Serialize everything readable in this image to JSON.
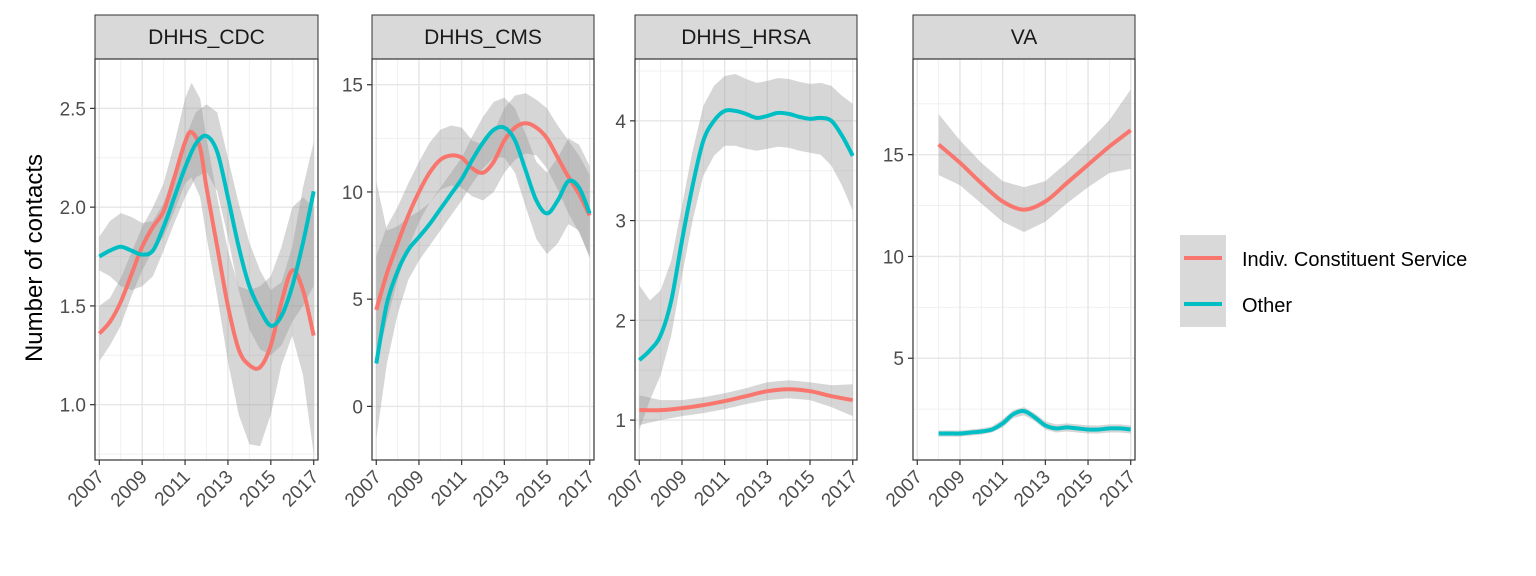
{
  "chart_data": {
    "type": "line",
    "ylabel": "Number of contacts",
    "xlabel": "",
    "colors": {
      "Indiv. Constituent Service": "#F8766D",
      "Other": "#00BFC4",
      "ribbon": "#999999"
    },
    "legend": {
      "position": "right",
      "entries": [
        "Indiv. Constituent Service",
        "Other"
      ]
    },
    "grid": true,
    "panels": [
      {
        "title": "DHHS_CDC",
        "xlim": [
          2006.8,
          2017.2
        ],
        "ylim": [
          0.72,
          2.75
        ],
        "xticks": [
          "2007",
          "2009",
          "2011",
          "2013",
          "2015",
          "2017"
        ],
        "yticks": [
          "1.0",
          "1.5",
          "2.0",
          "2.5"
        ],
        "series": [
          {
            "name": "Indiv. Constituent Service",
            "x": [
              2007,
              2007.5,
              2008,
              2008.5,
              2009,
              2009.5,
              2010,
              2010.5,
              2011,
              2011.3,
              2011.7,
              2012,
              2012.5,
              2013,
              2013.5,
              2014,
              2014.5,
              2015,
              2015.5,
              2016,
              2016.5,
              2017
            ],
            "y": [
              1.36,
              1.42,
              1.52,
              1.66,
              1.8,
              1.9,
              1.98,
              2.15,
              2.33,
              2.38,
              2.3,
              2.1,
              1.8,
              1.5,
              1.28,
              1.2,
              1.19,
              1.3,
              1.52,
              1.68,
              1.58,
              1.35
            ],
            "lower": [
              1.22,
              1.3,
              1.4,
              1.55,
              1.68,
              1.78,
              1.85,
              1.98,
              2.12,
              2.15,
              2.05,
              1.85,
              1.55,
              1.22,
              0.95,
              0.8,
              0.79,
              0.95,
              1.2,
              1.35,
              1.15,
              0.75
            ],
            "upper": [
              1.5,
              1.54,
              1.64,
              1.77,
              1.9,
              2.0,
              2.12,
              2.32,
              2.55,
              2.63,
              2.55,
              2.35,
              2.05,
              1.78,
              1.6,
              1.58,
              1.6,
              1.65,
              1.8,
              2.0,
              2.05,
              2.0
            ]
          },
          {
            "name": "Other",
            "x": [
              2007,
              2007.5,
              2008,
              2008.5,
              2009,
              2009.5,
              2010,
              2010.5,
              2011,
              2011.5,
              2012,
              2012.5,
              2013,
              2013.5,
              2014,
              2014.5,
              2015,
              2015.5,
              2016,
              2016.5,
              2017
            ],
            "y": [
              1.75,
              1.78,
              1.8,
              1.78,
              1.76,
              1.78,
              1.9,
              2.05,
              2.2,
              2.32,
              2.36,
              2.28,
              2.05,
              1.8,
              1.6,
              1.48,
              1.4,
              1.45,
              1.6,
              1.82,
              2.08
            ],
            "lower": [
              1.68,
              1.65,
              1.6,
              1.58,
              1.6,
              1.65,
              1.78,
              1.92,
              2.05,
              2.15,
              2.18,
              2.08,
              1.85,
              1.58,
              1.38,
              1.28,
              1.25,
              1.3,
              1.42,
              1.5,
              1.6
            ],
            "upper": [
              1.85,
              1.93,
              1.97,
              1.95,
              1.92,
              1.93,
              2.02,
              2.18,
              2.35,
              2.48,
              2.52,
              2.48,
              2.25,
              2.02,
              1.82,
              1.68,
              1.58,
              1.62,
              1.8,
              2.1,
              2.33
            ]
          }
        ]
      },
      {
        "title": "DHHS_CMS",
        "xlim": [
          2006.8,
          2017.2
        ],
        "ylim": [
          -2.5,
          16.2
        ],
        "xticks": [
          "2007",
          "2009",
          "2011",
          "2013",
          "2015",
          "2017"
        ],
        "yticks": [
          "0",
          "5",
          "10",
          "15"
        ],
        "series": [
          {
            "name": "Indiv. Constituent Service",
            "x": [
              2007,
              2007.5,
              2008,
              2008.5,
              2009,
              2009.5,
              2010,
              2010.5,
              2011,
              2011.5,
              2012,
              2012.5,
              2013,
              2013.5,
              2014,
              2014.5,
              2015,
              2015.5,
              2016,
              2016.5,
              2017
            ],
            "y": [
              4.5,
              6.2,
              7.6,
              8.9,
              10.0,
              10.9,
              11.5,
              11.7,
              11.6,
              11.1,
              10.9,
              11.4,
              12.4,
              13.0,
              13.2,
              13.0,
              12.5,
              11.6,
              10.7,
              9.9,
              8.9
            ],
            "lower": [
              2.0,
              4.0,
              5.9,
              7.4,
              8.6,
              9.5,
              10.1,
              10.3,
              10.2,
              9.8,
              9.6,
              10.0,
              10.9,
              11.5,
              11.8,
              11.7,
              11.1,
              10.1,
              9.0,
              8.1,
              7.0
            ],
            "upper": [
              7.0,
              8.4,
              9.3,
              10.4,
              11.4,
              12.3,
              12.9,
              13.1,
              13.0,
              12.4,
              12.2,
              12.8,
              13.9,
              14.5,
              14.6,
              14.3,
              13.9,
              13.1,
              12.4,
              11.7,
              10.8
            ]
          },
          {
            "name": "Other",
            "x": [
              2007,
              2007.5,
              2008,
              2008.5,
              2009,
              2009.5,
              2010,
              2010.5,
              2011,
              2011.5,
              2012,
              2012.5,
              2013,
              2013.5,
              2014,
              2014.5,
              2015,
              2015.5,
              2016,
              2016.5,
              2017
            ],
            "y": [
              2.0,
              4.8,
              6.3,
              7.3,
              7.9,
              8.5,
              9.2,
              9.9,
              10.6,
              11.5,
              12.3,
              12.9,
              13.0,
              12.4,
              11.0,
              9.6,
              9.0,
              9.6,
              10.5,
              10.2,
              9.0
            ],
            "lower": [
              -1.5,
              2.0,
              4.3,
              5.9,
              6.8,
              7.5,
              8.2,
              8.9,
              9.6,
              10.4,
              11.1,
              11.6,
              11.6,
              10.9,
              9.3,
              7.8,
              7.1,
              7.6,
              8.5,
              8.2,
              6.9
            ],
            "upper": [
              10.5,
              8.2,
              8.4,
              8.8,
              9.1,
              9.5,
              10.2,
              10.9,
              11.6,
              12.6,
              13.5,
              14.2,
              14.4,
              13.9,
              12.7,
              11.4,
              10.9,
              11.6,
              12.5,
              12.2,
              11.2
            ]
          }
        ]
      },
      {
        "title": "DHHS_HRSA",
        "xlim": [
          2006.8,
          2017.2
        ],
        "ylim": [
          0.6,
          4.62
        ],
        "xticks": [
          "2007",
          "2009",
          "2011",
          "2013",
          "2015",
          "2017"
        ],
        "yticks": [
          "1",
          "2",
          "3",
          "4"
        ],
        "series": [
          {
            "name": "Indiv. Constituent Service",
            "x": [
              2007,
              2008,
              2009,
              2010,
              2011,
              2012,
              2013,
              2014,
              2015,
              2016,
              2017
            ],
            "y": [
              1.1,
              1.1,
              1.12,
              1.15,
              1.19,
              1.24,
              1.29,
              1.31,
              1.29,
              1.24,
              1.2
            ],
            "lower": [
              0.95,
              1.0,
              1.04,
              1.07,
              1.11,
              1.16,
              1.2,
              1.22,
              1.2,
              1.13,
              1.04
            ],
            "upper": [
              1.25,
              1.2,
              1.2,
              1.23,
              1.27,
              1.32,
              1.38,
              1.4,
              1.38,
              1.35,
              1.36
            ]
          },
          {
            "name": "Other",
            "x": [
              2007,
              2007.5,
              2008,
              2008.5,
              2009,
              2009.5,
              2010,
              2010.5,
              2011,
              2011.5,
              2012,
              2012.5,
              2013,
              2013.5,
              2014,
              2014.5,
              2015,
              2015.5,
              2016,
              2016.5,
              2017
            ],
            "y": [
              1.6,
              1.7,
              1.85,
              2.2,
              2.8,
              3.35,
              3.8,
              4.0,
              4.1,
              4.1,
              4.07,
              4.03,
              4.05,
              4.08,
              4.07,
              4.04,
              4.02,
              4.03,
              4.0,
              3.85,
              3.65
            ],
            "lower": [
              0.9,
              1.2,
              1.45,
              1.85,
              2.45,
              3.0,
              3.45,
              3.65,
              3.75,
              3.75,
              3.72,
              3.7,
              3.72,
              3.74,
              3.73,
              3.7,
              3.68,
              3.66,
              3.55,
              3.35,
              3.1
            ],
            "upper": [
              2.35,
              2.2,
              2.3,
              2.6,
              3.15,
              3.7,
              4.15,
              4.35,
              4.45,
              4.47,
              4.42,
              4.38,
              4.4,
              4.43,
              4.42,
              4.39,
              4.37,
              4.38,
              4.35,
              4.25,
              4.17
            ]
          }
        ]
      },
      {
        "title": "VA",
        "xlim": [
          2006.8,
          2017.2
        ],
        "ylim": [
          0.0,
          19.7
        ],
        "xticks": [
          "2007",
          "2009",
          "2011",
          "2013",
          "2015",
          "2017"
        ],
        "yticks": [
          "5",
          "10",
          "15"
        ],
        "series": [
          {
            "name": "Indiv. Constituent Service",
            "x": [
              2008,
              2009,
              2010,
              2011,
              2012,
              2013,
              2014,
              2015,
              2016,
              2017
            ],
            "y": [
              15.5,
              14.6,
              13.6,
              12.7,
              12.3,
              12.7,
              13.6,
              14.5,
              15.4,
              16.2
            ],
            "lower": [
              14.0,
              13.5,
              12.6,
              11.7,
              11.2,
              11.7,
              12.6,
              13.4,
              14.1,
              14.3
            ],
            "upper": [
              17.0,
              15.7,
              14.6,
              13.7,
              13.4,
              13.7,
              14.6,
              15.6,
              16.7,
              18.2
            ]
          },
          {
            "name": "Other",
            "x": [
              2008,
              2008.5,
              2009,
              2009.5,
              2010,
              2010.5,
              2011,
              2011.5,
              2012,
              2012.5,
              2013,
              2013.5,
              2014,
              2014.5,
              2015,
              2015.5,
              2016,
              2016.5,
              2017
            ],
            "y": [
              1.3,
              1.3,
              1.3,
              1.35,
              1.4,
              1.5,
              1.8,
              2.25,
              2.4,
              2.1,
              1.7,
              1.55,
              1.6,
              1.55,
              1.5,
              1.5,
              1.55,
              1.55,
              1.5
            ],
            "lower": [
              1.15,
              1.15,
              1.15,
              1.2,
              1.25,
              1.35,
              1.6,
              2.05,
              2.2,
              1.9,
              1.5,
              1.35,
              1.4,
              1.35,
              1.3,
              1.3,
              1.35,
              1.35,
              1.3
            ],
            "upper": [
              1.45,
              1.45,
              1.45,
              1.5,
              1.55,
              1.65,
              2.0,
              2.45,
              2.6,
              2.3,
              1.9,
              1.75,
              1.8,
              1.75,
              1.7,
              1.7,
              1.75,
              1.75,
              1.7
            ]
          }
        ]
      }
    ]
  }
}
